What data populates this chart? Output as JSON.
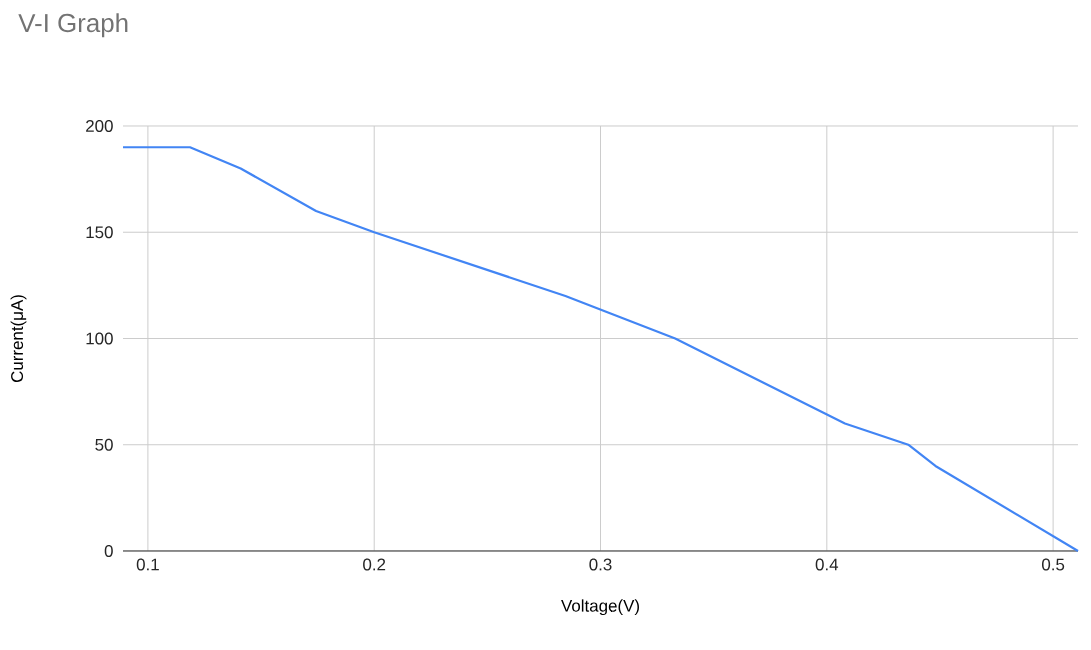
{
  "chart_data": {
    "type": "line",
    "title": "V-I Graph",
    "xlabel": "Voltage(V)",
    "ylabel": "Current(μA)",
    "x": [
      0.089,
      0.1186,
      0.141,
      0.1743,
      0.2,
      0.2845,
      0.333,
      0.408,
      0.436,
      0.448,
      0.511
    ],
    "series": [
      {
        "color": "#4285f4",
        "values": [
          190,
          190,
          180,
          160,
          150,
          120,
          100,
          60,
          50,
          40,
          0
        ]
      }
    ],
    "xlim": [
      0.089,
      0.511
    ],
    "xticks": [
      0.1,
      0.2,
      0.3,
      0.4,
      0.5
    ],
    "ylim": [
      0,
      200
    ],
    "yticks": [
      0,
      50,
      100,
      150,
      200
    ],
    "grid": true,
    "marker": "none",
    "line_style": "solid"
  }
}
